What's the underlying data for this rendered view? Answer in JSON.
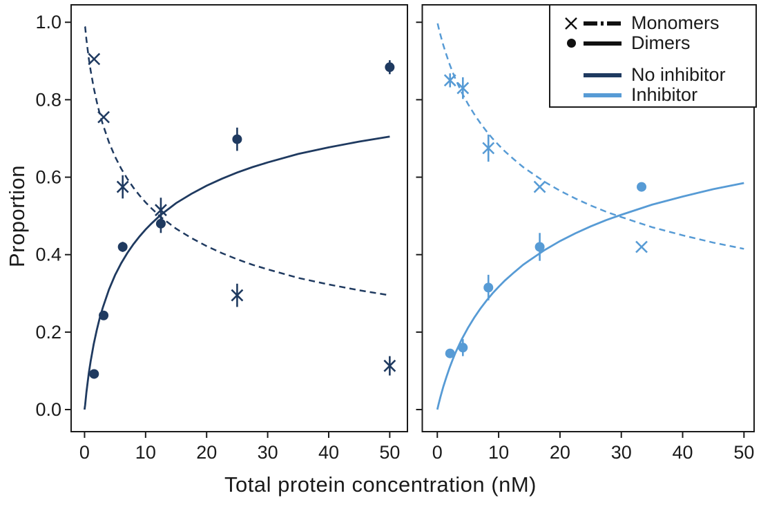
{
  "figure": {
    "background": "#ffffff",
    "text_color": "#1a1a1a"
  },
  "chart_data": {
    "type": "scatter",
    "title": "",
    "xlabel": "Total protein concentration (nM)",
    "ylabel": "Proportion",
    "grid": false,
    "legend_position": "upper right of right panel",
    "legend": [
      {
        "label": "Monomers",
        "marker": "x",
        "linestyle": "dashed",
        "color": "#111111"
      },
      {
        "label": "Dimers",
        "marker": "circle",
        "linestyle": "solid",
        "color": "#111111"
      },
      {
        "label": "No inhibitor",
        "color": "#1f3a60"
      },
      {
        "label": "Inhibitor",
        "color": "#579bd5"
      }
    ],
    "panels": [
      {
        "condition": "No inhibitor",
        "color": "#1f3a60",
        "xlim": [
          -2.2,
          52.9
        ],
        "ylim": [
          -0.057,
          1.045
        ],
        "x_ticks": [
          0,
          10,
          20,
          30,
          40,
          50
        ],
        "x_tick_labels": [
          "0",
          "10",
          "20",
          "30",
          "40",
          "50"
        ],
        "y_ticks": [
          0,
          0.2,
          0.4,
          0.6,
          0.8,
          1.0
        ],
        "y_tick_labels": [
          "0.0",
          "0.2",
          "0.4",
          "0.6",
          "0.8",
          "1.0"
        ],
        "show_y_tick_labels": true,
        "series": [
          {
            "name": "Monomers",
            "marker": "x",
            "fit_linestyle": "dashed",
            "x": [
              1.5625,
              3.125,
              6.25,
              12.5,
              25,
              50
            ],
            "y": [
              0.905,
              0.755,
              0.575,
              0.515,
              0.295,
              0.113
            ],
            "yerr": [
              0,
              0,
              0.03,
              0.032,
              0.03,
              0.025
            ],
            "fit": [
              [
                0.05,
                0.989
              ],
              [
                0.1,
                0.988
              ],
              [
                0.3,
                0.956
              ],
              [
                0.5,
                0.93
              ],
              [
                0.7,
                0.906
              ],
              [
                1,
                0.875
              ],
              [
                1.5,
                0.831
              ],
              [
                2,
                0.795
              ],
              [
                2.5,
                0.763
              ],
              [
                3,
                0.736
              ],
              [
                4,
                0.69
              ],
              [
                5,
                0.653
              ],
              [
                6,
                0.622
              ],
              [
                7,
                0.596
              ],
              [
                8,
                0.573
              ],
              [
                9,
                0.553
              ],
              [
                10,
                0.535
              ],
              [
                11,
                0.519
              ],
              [
                12.5,
                0.497
              ],
              [
                14,
                0.479
              ],
              [
                15,
                0.467
              ],
              [
                17.5,
                0.443
              ],
              [
                20,
                0.422
              ],
              [
                22.5,
                0.404
              ],
              [
                25,
                0.388
              ],
              [
                27.5,
                0.374
              ],
              [
                30,
                0.362
              ],
              [
                35,
                0.34
              ],
              [
                40,
                0.323
              ],
              [
                45,
                0.308
              ],
              [
                50,
                0.295
              ]
            ]
          },
          {
            "name": "Dimers",
            "marker": "circle",
            "fit_linestyle": "solid",
            "x": [
              1.5625,
              3.125,
              6.25,
              12.5,
              25,
              50
            ],
            "y": [
              0.092,
              0.243,
              0.42,
              0.48,
              0.698,
              0.884
            ],
            "yerr": [
              0,
              0,
              0.013,
              0.024,
              0.03,
              0.018
            ],
            "fit": [
              [
                0,
                0
              ],
              [
                0.1,
                0.012
              ],
              [
                0.3,
                0.044
              ],
              [
                0.5,
                0.07
              ],
              [
                0.7,
                0.094
              ],
              [
                1,
                0.125
              ],
              [
                1.5,
                0.169
              ],
              [
                2,
                0.205
              ],
              [
                2.5,
                0.237
              ],
              [
                3,
                0.264
              ],
              [
                4,
                0.31
              ],
              [
                5,
                0.347
              ],
              [
                6,
                0.378
              ],
              [
                7,
                0.404
              ],
              [
                8,
                0.427
              ],
              [
                9,
                0.447
              ],
              [
                10,
                0.465
              ],
              [
                11,
                0.481
              ],
              [
                12.5,
                0.503
              ],
              [
                14,
                0.521
              ],
              [
                15,
                0.533
              ],
              [
                17.5,
                0.557
              ],
              [
                20,
                0.578
              ],
              [
                22.5,
                0.596
              ],
              [
                25,
                0.612
              ],
              [
                27.5,
                0.626
              ],
              [
                30,
                0.638
              ],
              [
                35,
                0.66
              ],
              [
                40,
                0.677
              ],
              [
                45,
                0.692
              ],
              [
                50,
                0.705
              ]
            ]
          }
        ]
      },
      {
        "condition": "Inhibitor",
        "color": "#579bd5",
        "xlim": [
          -2.45,
          51.65
        ],
        "ylim": [
          -0.057,
          1.045
        ],
        "x_ticks": [
          0,
          10,
          20,
          30,
          40,
          50
        ],
        "x_tick_labels": [
          "0",
          "10",
          "20",
          "30",
          "40",
          "50"
        ],
        "y_ticks": [
          0,
          0.2,
          0.4,
          0.6,
          0.8,
          1.0
        ],
        "y_tick_labels": [
          "0.0",
          "0.2",
          "0.4",
          "0.6",
          "0.8",
          "1.0"
        ],
        "show_y_tick_labels": false,
        "series": [
          {
            "name": "Monomers",
            "marker": "x",
            "fit_linestyle": "dashed",
            "x": [
              2.08,
              4.17,
              8.33,
              16.7,
              33.3
            ],
            "y": [
              0.85,
              0.83,
              0.675,
              0.575,
              0.42
            ],
            "yerr": [
              0.018,
              0.028,
              0.035,
              0,
              0
            ],
            "fit": [
              [
                0.05,
                0.997
              ],
              [
                0.2,
                0.987
              ],
              [
                0.5,
                0.968
              ],
              [
                1,
                0.94
              ],
              [
                1.5,
                0.915
              ],
              [
                2,
                0.892
              ],
              [
                2.5,
                0.871
              ],
              [
                3,
                0.852
              ],
              [
                4,
                0.818
              ],
              [
                5,
                0.789
              ],
              [
                6,
                0.763
              ],
              [
                7,
                0.74
              ],
              [
                8,
                0.719
              ],
              [
                9,
                0.7
              ],
              [
                10,
                0.683
              ],
              [
                11,
                0.667
              ],
              [
                12.5,
                0.646
              ],
              [
                14,
                0.626
              ],
              [
                15,
                0.615
              ],
              [
                17.5,
                0.588
              ],
              [
                20,
                0.565
              ],
              [
                22.5,
                0.545
              ],
              [
                25,
                0.527
              ],
              [
                27.5,
                0.511
              ],
              [
                30,
                0.497
              ],
              [
                35,
                0.471
              ],
              [
                40,
                0.45
              ],
              [
                45,
                0.431
              ],
              [
                50,
                0.415
              ]
            ]
          },
          {
            "name": "Dimers",
            "marker": "circle",
            "fit_linestyle": "solid",
            "x": [
              2.08,
              4.17,
              8.33,
              16.7,
              33.3
            ],
            "y": [
              0.145,
              0.16,
              0.315,
              0.42,
              0.575
            ],
            "yerr": [
              0.01,
              0.022,
              0.033,
              0.036,
              0
            ],
            "fit": [
              [
                0,
                0
              ],
              [
                0.2,
                0.013
              ],
              [
                0.5,
                0.032
              ],
              [
                1,
                0.06
              ],
              [
                1.5,
                0.085
              ],
              [
                2,
                0.108
              ],
              [
                2.5,
                0.129
              ],
              [
                3,
                0.148
              ],
              [
                4,
                0.182
              ],
              [
                5,
                0.211
              ],
              [
                6,
                0.237
              ],
              [
                7,
                0.26
              ],
              [
                8,
                0.281
              ],
              [
                9,
                0.3
              ],
              [
                10,
                0.317
              ],
              [
                11,
                0.333
              ],
              [
                12.5,
                0.354
              ],
              [
                14,
                0.374
              ],
              [
                15,
                0.385
              ],
              [
                17.5,
                0.412
              ],
              [
                20,
                0.435
              ],
              [
                22.5,
                0.455
              ],
              [
                25,
                0.473
              ],
              [
                27.5,
                0.489
              ],
              [
                30,
                0.503
              ],
              [
                35,
                0.529
              ],
              [
                40,
                0.55
              ],
              [
                45,
                0.569
              ],
              [
                50,
                0.585
              ]
            ]
          }
        ]
      }
    ]
  }
}
